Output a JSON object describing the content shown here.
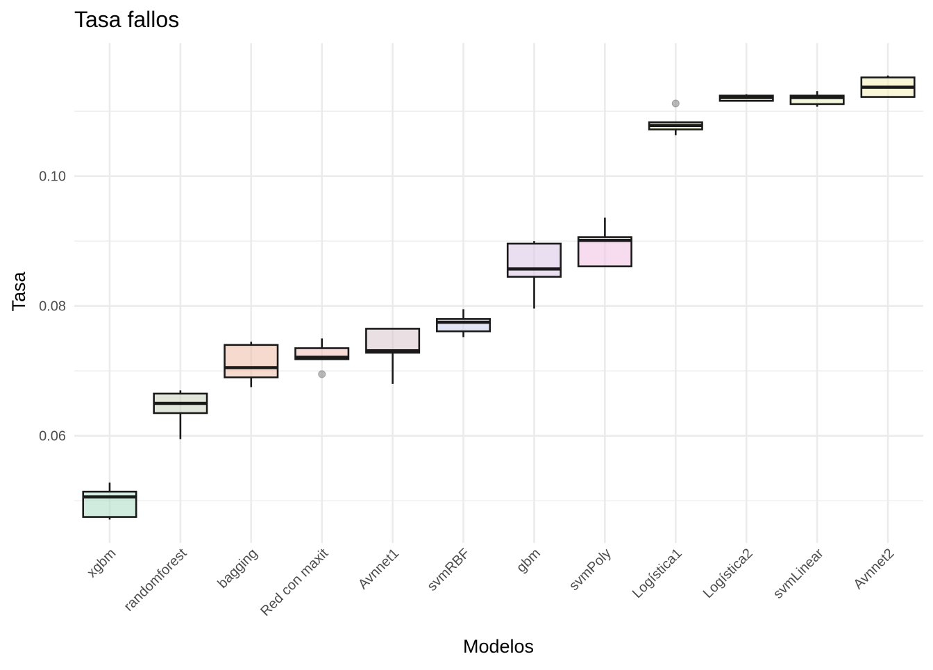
{
  "chart_data": {
    "type": "boxplot",
    "title": "Tasa fallos",
    "xlabel": "Modelos",
    "ylabel": "Tasa",
    "ylim": [
      0.0435,
      0.1205
    ],
    "y_ticks": [
      0.06,
      0.08,
      0.1
    ],
    "y_tick_labels": [
      "0.06",
      "0.08",
      "0.10"
    ],
    "grid": true,
    "legend": "none",
    "categories": [
      "xgbm",
      "randomforest",
      "bagging",
      "Red con maxit",
      "Avnnet1",
      "svmRBF",
      "gbm",
      "svmPoly",
      "Logística1",
      "Logística2",
      "svmLinear",
      "Avnnet2"
    ],
    "boxes": [
      {
        "name": "xgbm",
        "whisker_low": 0.0471,
        "q1": 0.0475,
        "median": 0.0506,
        "q3": 0.0514,
        "whisker_high": 0.0528,
        "outliers": [],
        "fill": "#a8dcc4"
      },
      {
        "name": "randomforest",
        "whisker_low": 0.0595,
        "q1": 0.0635,
        "median": 0.065,
        "q3": 0.0665,
        "whisker_high": 0.067,
        "outliers": [],
        "fill": "#c8d2bc"
      },
      {
        "name": "bagging",
        "whisker_low": 0.0675,
        "q1": 0.069,
        "median": 0.0705,
        "q3": 0.074,
        "whisker_high": 0.0745,
        "outliers": [],
        "fill": "#ecbca4"
      },
      {
        "name": "Red con maxit",
        "whisker_low": 0.0718,
        "q1": 0.0718,
        "median": 0.0721,
        "q3": 0.0735,
        "whisker_high": 0.075,
        "outliers": [
          0.0695
        ],
        "fill": "#f2bcb4"
      },
      {
        "name": "Avnnet1",
        "whisker_low": 0.068,
        "q1": 0.0728,
        "median": 0.0731,
        "q3": 0.0765,
        "whisker_high": 0.0765,
        "outliers": [],
        "fill": "#d8c4cc"
      },
      {
        "name": "svmRBF",
        "whisker_low": 0.0752,
        "q1": 0.0761,
        "median": 0.0775,
        "q3": 0.078,
        "whisker_high": 0.0795,
        "outliers": [],
        "fill": "#c8d0ec"
      },
      {
        "name": "gbm",
        "whisker_low": 0.0796,
        "q1": 0.0845,
        "median": 0.0857,
        "q3": 0.0896,
        "whisker_high": 0.09,
        "outliers": [],
        "fill": "#d8c4e4"
      },
      {
        "name": "svmPoly",
        "whisker_low": 0.0861,
        "q1": 0.0861,
        "median": 0.0901,
        "q3": 0.0906,
        "whisker_high": 0.0936,
        "outliers": [],
        "fill": "#f0c0e4"
      },
      {
        "name": "Logística1",
        "whisker_low": 0.1063,
        "q1": 0.1072,
        "median": 0.1078,
        "q3": 0.1083,
        "whisker_high": 0.1083,
        "outliers": [
          0.1112
        ],
        "fill": "#e8f0c4"
      },
      {
        "name": "Logística2",
        "whisker_low": 0.1116,
        "q1": 0.1116,
        "median": 0.1121,
        "q3": 0.1124,
        "whisker_high": 0.1126,
        "outliers": [],
        "fill": "#f0f0c4"
      },
      {
        "name": "svmLinear",
        "whisker_low": 0.1107,
        "q1": 0.1111,
        "median": 0.1121,
        "q3": 0.1124,
        "whisker_high": 0.1131,
        "outliers": [],
        "fill": "#eaf0c0"
      },
      {
        "name": "Avnnet2",
        "whisker_low": 0.1122,
        "q1": 0.1122,
        "median": 0.1137,
        "q3": 0.1152,
        "whisker_high": 0.1155,
        "outliers": [],
        "fill": "#f4f0b8"
      }
    ]
  }
}
